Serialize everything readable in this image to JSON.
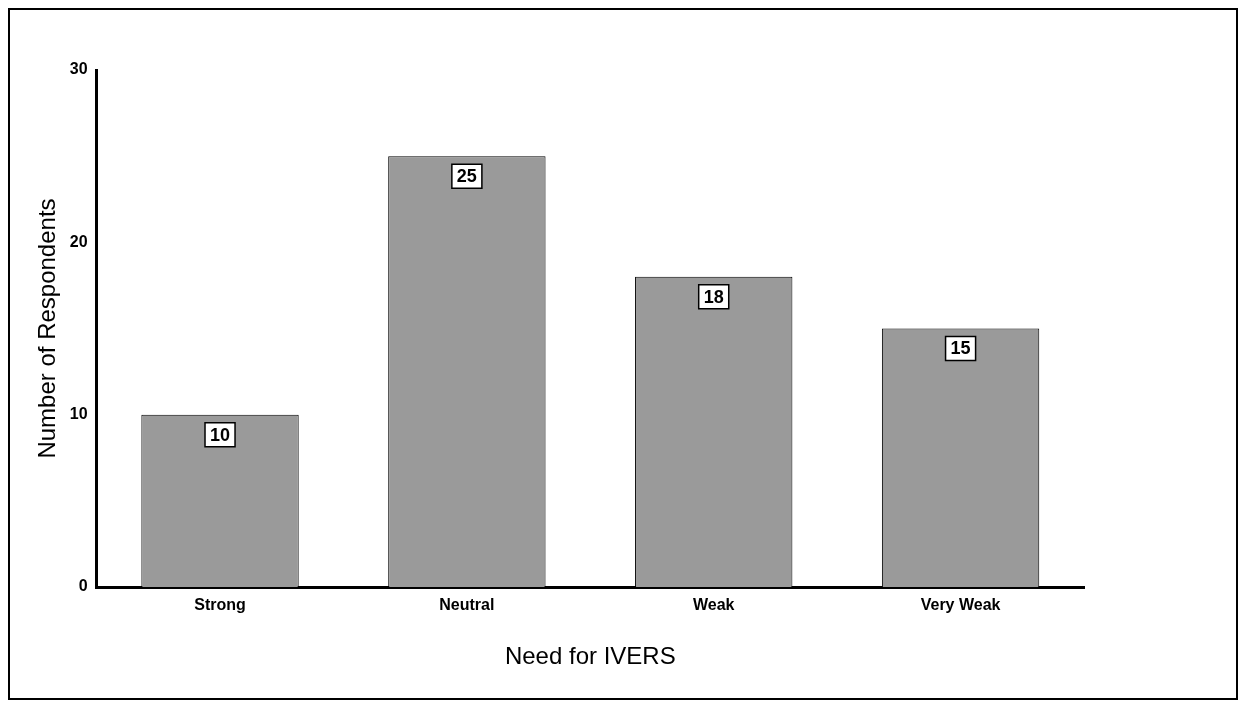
{
  "chart_data": {
    "type": "bar",
    "xlabel": "Need for IVERS",
    "ylabel": "Number of Respondents",
    "categories": [
      "Strong",
      "Neutral",
      "Weak",
      "Very Weak"
    ],
    "values": [
      10,
      25,
      18,
      15
    ],
    "color": "#9a9a9a",
    "ylim": [
      0,
      30
    ],
    "yticks": [
      0,
      10,
      20,
      30
    ],
    "grid": false,
    "legend": false,
    "data_labels": true
  }
}
